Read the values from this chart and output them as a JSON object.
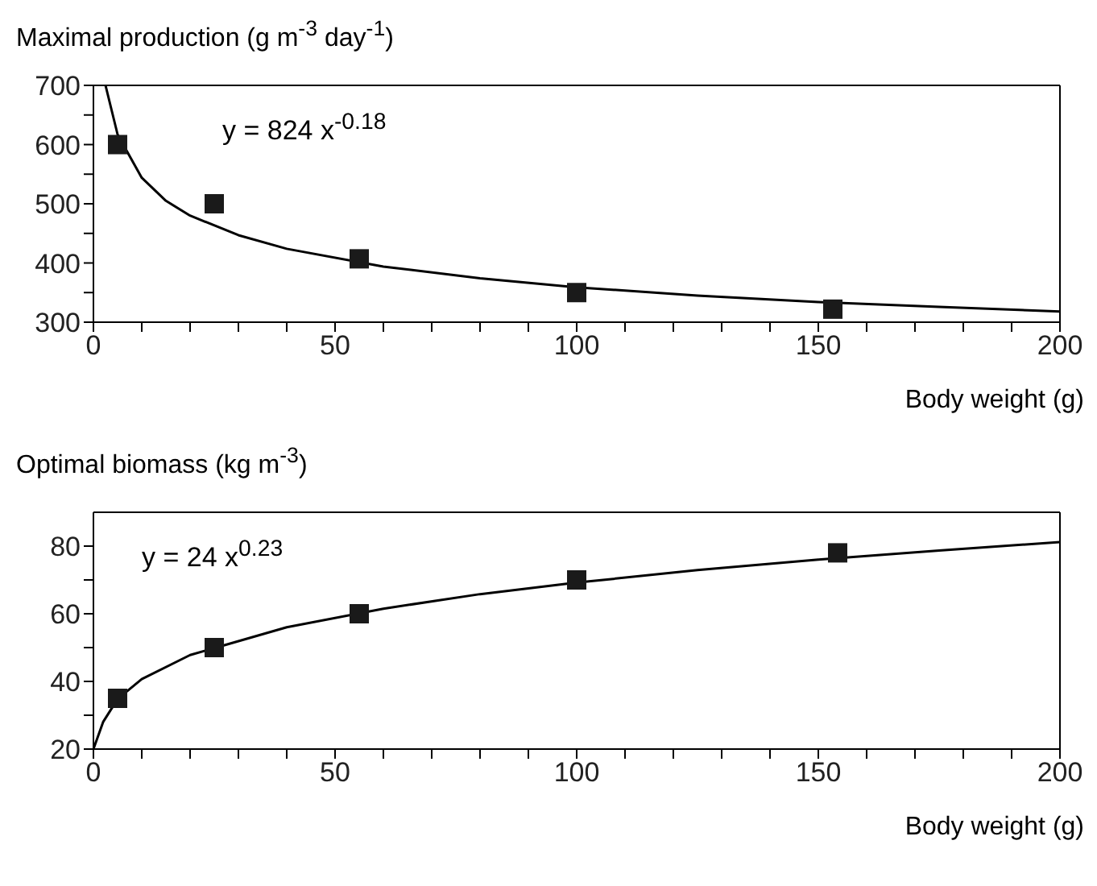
{
  "chart_data": [
    {
      "type": "scatter",
      "ylabel": "Maximal production (g m$^{-3}$ day$^{-1}$)",
      "xlabel": "Body weight (g)",
      "annotations": [
        "y = 824 x$^{-0.18}$"
      ],
      "xlim": [
        0,
        200
      ],
      "xticks": [
        0,
        {
          "value": 10,
          "label": null
        },
        {
          "value": 20,
          "label": null
        },
        {
          "value": 30,
          "label": null
        },
        {
          "value": 40,
          "label": null
        },
        50,
        {
          "value": 60,
          "label": null
        },
        {
          "value": 70,
          "label": null
        },
        {
          "value": 80,
          "label": null
        },
        {
          "value": 90,
          "label": null
        },
        100,
        {
          "value": 110,
          "label": null
        },
        {
          "value": 120,
          "label": null
        },
        {
          "value": 130,
          "label": null
        },
        {
          "value": 140,
          "label": null
        },
        150,
        {
          "value": 160,
          "label": null
        },
        {
          "value": 170,
          "label": null
        },
        {
          "value": 180,
          "label": null
        },
        {
          "value": 190,
          "label": null
        },
        200
      ],
      "ylim": [
        300,
        700
      ],
      "yticks": [
        300,
        {
          "value": 350,
          "label": null
        },
        400,
        {
          "value": 450,
          "label": null
        },
        500,
        {
          "value": 550,
          "label": null
        },
        600,
        {
          "value": 650,
          "label": null
        },
        700
      ],
      "series": [
        {
          "type": "scatter",
          "marker": "square",
          "color": "#1a1a1a",
          "x": [
            5,
            25,
            55,
            100,
            153
          ],
          "values": [
            600,
            500,
            407,
            350,
            322
          ]
        },
        {
          "type": "line",
          "marker": "none",
          "line_style": "solid",
          "color": "#000000",
          "x": [
            2.5,
            5,
            10,
            15,
            20,
            30,
            40,
            60,
            80,
            100,
            125,
            150,
            175,
            200
          ],
          "values": [
            700,
            617,
            544,
            505,
            480,
            447,
            424,
            394,
            374,
            359,
            345,
            334,
            326,
            318
          ]
        }
      ]
    },
    {
      "type": "scatter",
      "ylabel": "Optimal biomass (kg m$^{-3}$)",
      "xlabel": "Body weight (g)",
      "annotations": [
        "y = 24 x$^{0.23}$"
      ],
      "xlim": [
        0,
        200
      ],
      "xticks": [
        0,
        {
          "value": 10,
          "label": null
        },
        {
          "value": 20,
          "label": null
        },
        {
          "value": 30,
          "label": null
        },
        {
          "value": 40,
          "label": null
        },
        50,
        {
          "value": 60,
          "label": null
        },
        {
          "value": 70,
          "label": null
        },
        {
          "value": 80,
          "label": null
        },
        {
          "value": 90,
          "label": null
        },
        100,
        {
          "value": 110,
          "label": null
        },
        {
          "value": 120,
          "label": null
        },
        {
          "value": 130,
          "label": null
        },
        {
          "value": 140,
          "label": null
        },
        150,
        {
          "value": 160,
          "label": null
        },
        {
          "value": 170,
          "label": null
        },
        {
          "value": 180,
          "label": null
        },
        {
          "value": 190,
          "label": null
        },
        200
      ],
      "ylim": [
        20,
        90
      ],
      "yticks": [
        20,
        {
          "value": 30,
          "label": null
        },
        40,
        {
          "value": 50,
          "label": null
        },
        60,
        {
          "value": 70,
          "label": null
        },
        80
      ],
      "series": [
        {
          "type": "scatter",
          "marker": "square",
          "color": "#1a1a1a",
          "x": [
            5,
            25,
            55,
            100,
            154
          ],
          "values": [
            35,
            50,
            60,
            70,
            78
          ]
        },
        {
          "type": "line",
          "marker": "none",
          "line_style": "solid",
          "color": "#000000",
          "x": [
            0,
            1,
            2,
            5,
            10,
            20,
            40,
            60,
            80,
            100,
            125,
            150,
            175,
            200
          ],
          "values": [
            20,
            24,
            28,
            34.8,
            40.7,
            47.8,
            56,
            61.5,
            65.8,
            69.2,
            72.9,
            76,
            78.7,
            81.2
          ]
        }
      ]
    }
  ]
}
